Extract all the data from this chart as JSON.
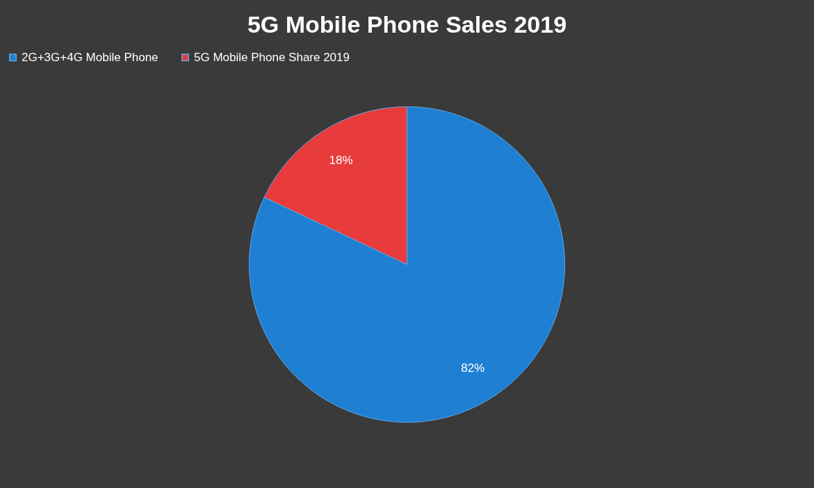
{
  "chart_data": {
    "type": "pie",
    "title": "5G Mobile Phone Sales 2019",
    "categories": [
      "2G+3G+4G Mobile Phone",
      "5G Mobile Phone Share 2019"
    ],
    "values": [
      82,
      18
    ],
    "colors": [
      "#1f7fd2",
      "#e83b3b"
    ],
    "value_labels": [
      "82%",
      "18%"
    ],
    "legend": "top"
  }
}
